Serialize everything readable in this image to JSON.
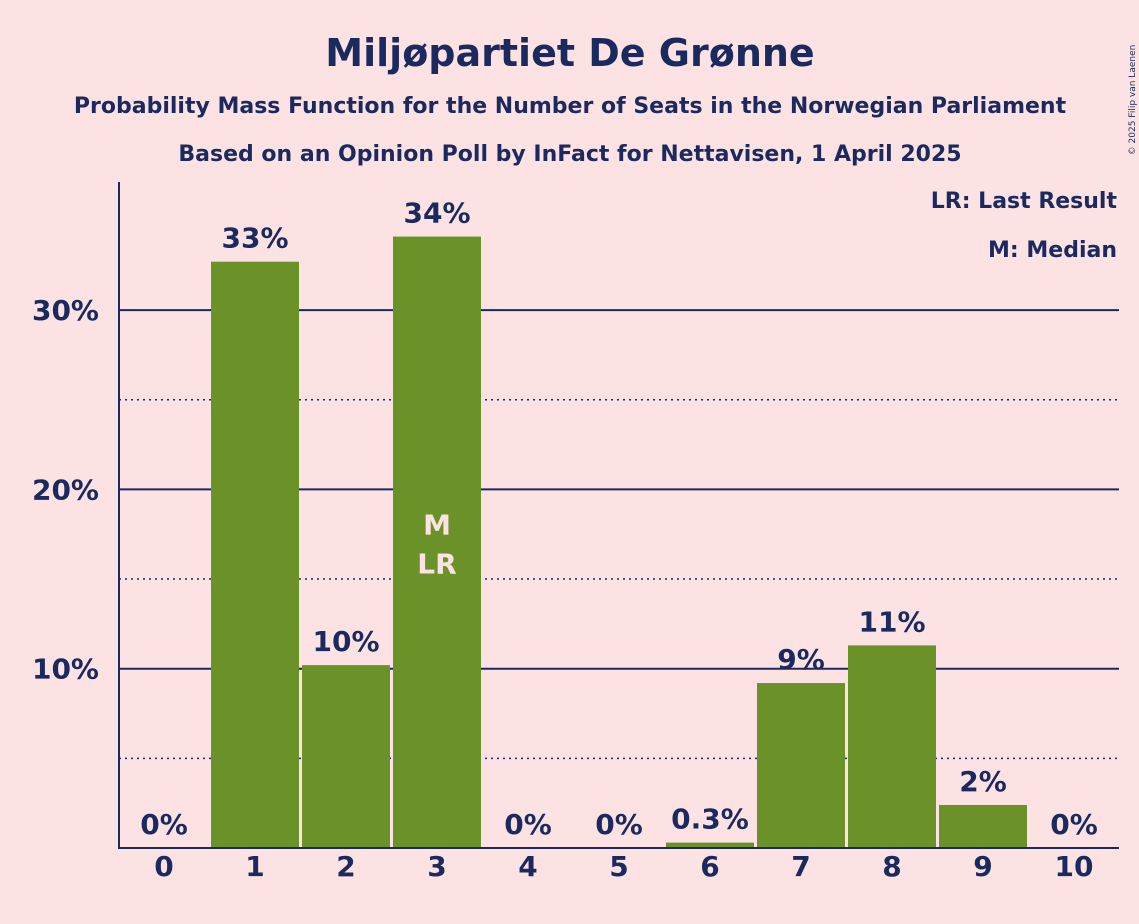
{
  "chart_data": {
    "type": "bar",
    "title": "Miljøpartiet De Grønne",
    "subtitle": "Probability Mass Function for the Number of Seats in the Norwegian Parliament",
    "subtitle2": "Based on an Opinion Poll by InFact for Nettavisen, 1 April 2025",
    "categories": [
      "0",
      "1",
      "2",
      "3",
      "4",
      "5",
      "6",
      "7",
      "8",
      "9",
      "10"
    ],
    "values": [
      0,
      32.7,
      10.2,
      34.1,
      0,
      0,
      0.3,
      9.2,
      11.3,
      2.4,
      0
    ],
    "data_labels": [
      "0%",
      "33%",
      "10%",
      "34%",
      "0%",
      "0%",
      "0.3%",
      "9%",
      "11%",
      "2%",
      "0%"
    ],
    "y_ticks": [
      10,
      20,
      30
    ],
    "y_tick_labels": [
      "10%",
      "20%",
      "30%"
    ],
    "ylim": [
      0,
      37
    ],
    "grid": true,
    "bar_color": "#6b9228",
    "text_color": "#1b2a5e",
    "background_color": "#fde2e4",
    "median_seat": 3,
    "last_result_seat": 3,
    "median_marker": "M",
    "last_result_marker": "LR",
    "legend": {
      "placement": "top-right",
      "entries": [
        "LR: Last Result",
        "M: Median"
      ]
    }
  },
  "copyright": "© 2025 Filip van Laenen"
}
